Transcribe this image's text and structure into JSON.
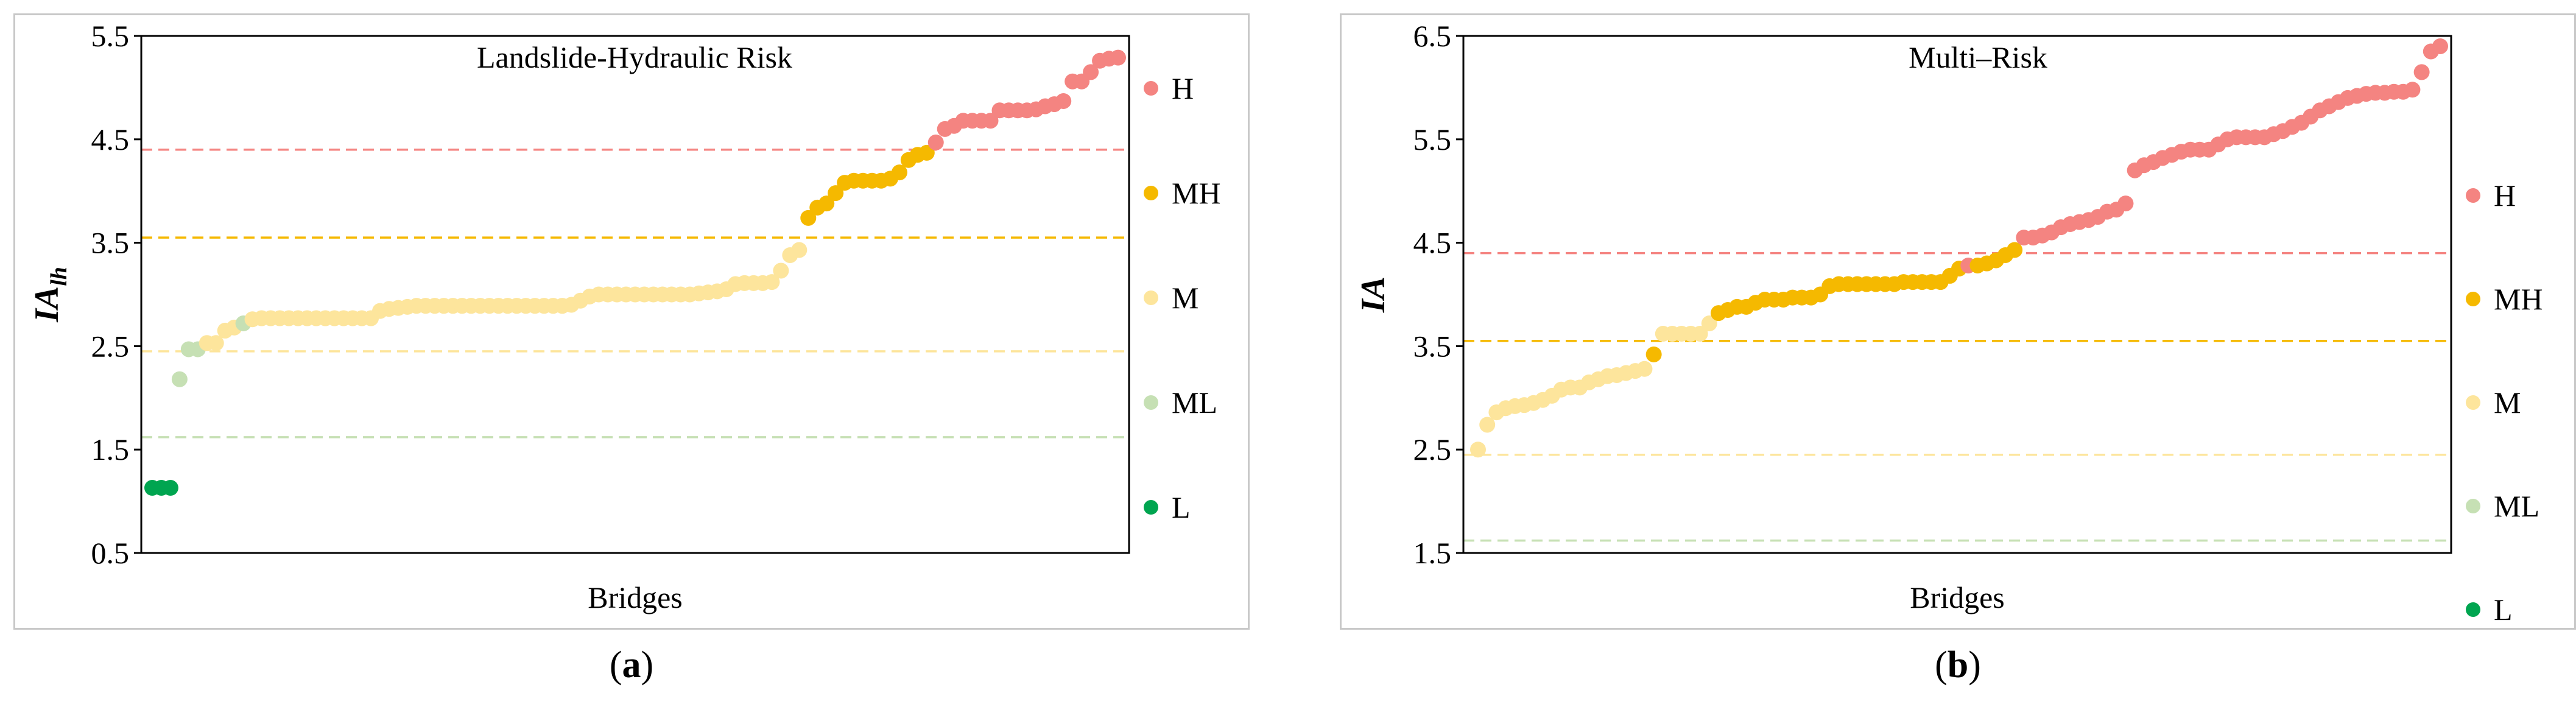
{
  "colors": {
    "H": "#f48481",
    "MH": "#f5b900",
    "M": "#fde59c",
    "ML": "#c6e0b4",
    "L": "#00a550",
    "axis": "#000000",
    "frame": "#c8c8c8"
  },
  "chart_data": [
    {
      "type": "scatter",
      "panel_label": "a",
      "title": "Landslide-Hydraulic Risk",
      "xlabel": "Bridges",
      "ylabel_main": "IA",
      "ylabel_sub": "lh",
      "ylim": [
        0.5,
        5.5
      ],
      "yticks": [
        "0.5",
        "1.5",
        "2.5",
        "3.5",
        "4.5",
        "5.5"
      ],
      "grid": false,
      "thresholds": [
        {
          "class": "H",
          "value": 4.4
        },
        {
          "class": "MH",
          "value": 3.55
        },
        {
          "class": "M",
          "value": 2.45
        },
        {
          "class": "ML",
          "value": 1.62
        }
      ],
      "legend": [
        "H",
        "MH",
        "M",
        "ML",
        "L"
      ],
      "legend_position": "right",
      "series": [
        {
          "class": "L",
          "values": [
            1.13,
            1.13,
            1.13
          ]
        },
        {
          "class": "ML",
          "values": [
            2.18,
            2.47,
            2.47
          ]
        },
        {
          "class": "M",
          "values": [
            2.53,
            2.53,
            2.65,
            2.68
          ]
        },
        {
          "class": "ML",
          "values": [
            2.72
          ]
        },
        {
          "class": "M",
          "values": [
            2.76,
            2.77,
            2.77,
            2.77,
            2.77,
            2.77,
            2.77,
            2.77,
            2.77,
            2.77,
            2.77,
            2.77,
            2.77,
            2.77,
            2.84,
            2.86,
            2.87,
            2.88,
            2.89,
            2.89,
            2.89,
            2.89,
            2.89,
            2.89,
            2.89,
            2.89,
            2.89,
            2.89,
            2.89,
            2.89,
            2.89,
            2.89,
            2.89,
            2.89,
            2.89,
            2.9,
            2.94,
            2.98,
            3.0,
            3.0,
            3.0,
            3.0,
            3.0,
            3.0,
            3.0,
            3.0,
            3.0,
            3.0,
            3.0,
            3.01,
            3.02,
            3.03,
            3.05,
            3.1,
            3.11,
            3.11,
            3.11,
            3.12,
            3.23,
            3.38,
            3.43
          ]
        },
        {
          "class": "MH",
          "values": [
            3.74,
            3.84,
            3.88,
            3.98,
            4.08,
            4.1,
            4.1,
            4.1,
            4.1,
            4.12,
            4.18,
            4.3,
            4.35,
            4.37
          ]
        },
        {
          "class": "H",
          "values": [
            4.47,
            4.6,
            4.63,
            4.68,
            4.68,
            4.68,
            4.68,
            4.78,
            4.78,
            4.78,
            4.78,
            4.79,
            4.82,
            4.84,
            4.87,
            5.06,
            5.06,
            5.15,
            5.26,
            5.28,
            5.29
          ]
        }
      ]
    },
    {
      "type": "scatter",
      "panel_label": "b",
      "title": "Multi–Risk",
      "xlabel": "Bridges",
      "ylabel_main": "IA",
      "ylabel_sub": "",
      "ylim": [
        1.5,
        6.5
      ],
      "yticks": [
        "1.5",
        "2.5",
        "3.5",
        "4.5",
        "5.5",
        "6.5"
      ],
      "grid": false,
      "thresholds": [
        {
          "class": "H",
          "value": 4.4
        },
        {
          "class": "MH",
          "value": 3.55
        },
        {
          "class": "M",
          "value": 2.45
        },
        {
          "class": "ML",
          "value": 1.62
        }
      ],
      "legend": [
        "H",
        "MH",
        "M",
        "ML",
        "L"
      ],
      "legend_position": "right",
      "series": [
        {
          "class": "M",
          "values": [
            2.5,
            2.74,
            2.86,
            2.9,
            2.92,
            2.93,
            2.95,
            2.98,
            3.02,
            3.08,
            3.1,
            3.1,
            3.15,
            3.18,
            3.21,
            3.22,
            3.24,
            3.26,
            3.28
          ]
        },
        {
          "class": "MH",
          "values": [
            3.42
          ]
        },
        {
          "class": "M",
          "values": [
            3.62,
            3.62,
            3.62,
            3.62,
            3.62,
            3.72
          ]
        },
        {
          "class": "MH",
          "values": [
            3.82,
            3.85,
            3.88,
            3.88,
            3.92,
            3.95,
            3.95,
            3.95,
            3.97,
            3.97,
            3.97,
            4.0,
            4.08,
            4.1,
            4.1,
            4.1,
            4.1,
            4.1,
            4.1,
            4.1,
            4.12,
            4.12,
            4.12,
            4.12,
            4.12,
            4.18,
            4.25
          ]
        },
        {
          "class": "H",
          "values": [
            4.28
          ]
        },
        {
          "class": "MH",
          "values": [
            4.28,
            4.3,
            4.33,
            4.38,
            4.43
          ]
        },
        {
          "class": "H",
          "values": [
            4.55,
            4.55,
            4.57,
            4.6,
            4.65,
            4.68,
            4.7,
            4.72,
            4.75,
            4.8,
            4.82,
            4.88,
            5.2,
            5.25,
            5.28,
            5.32,
            5.35,
            5.38,
            5.4,
            5.4,
            5.4,
            5.45,
            5.5,
            5.52,
            5.52,
            5.52,
            5.52,
            5.55,
            5.58,
            5.62,
            5.66,
            5.72,
            5.78,
            5.82,
            5.86,
            5.9,
            5.92,
            5.94,
            5.95,
            5.95,
            5.96,
            5.96,
            5.98,
            6.15,
            6.35,
            6.4
          ]
        }
      ]
    }
  ]
}
